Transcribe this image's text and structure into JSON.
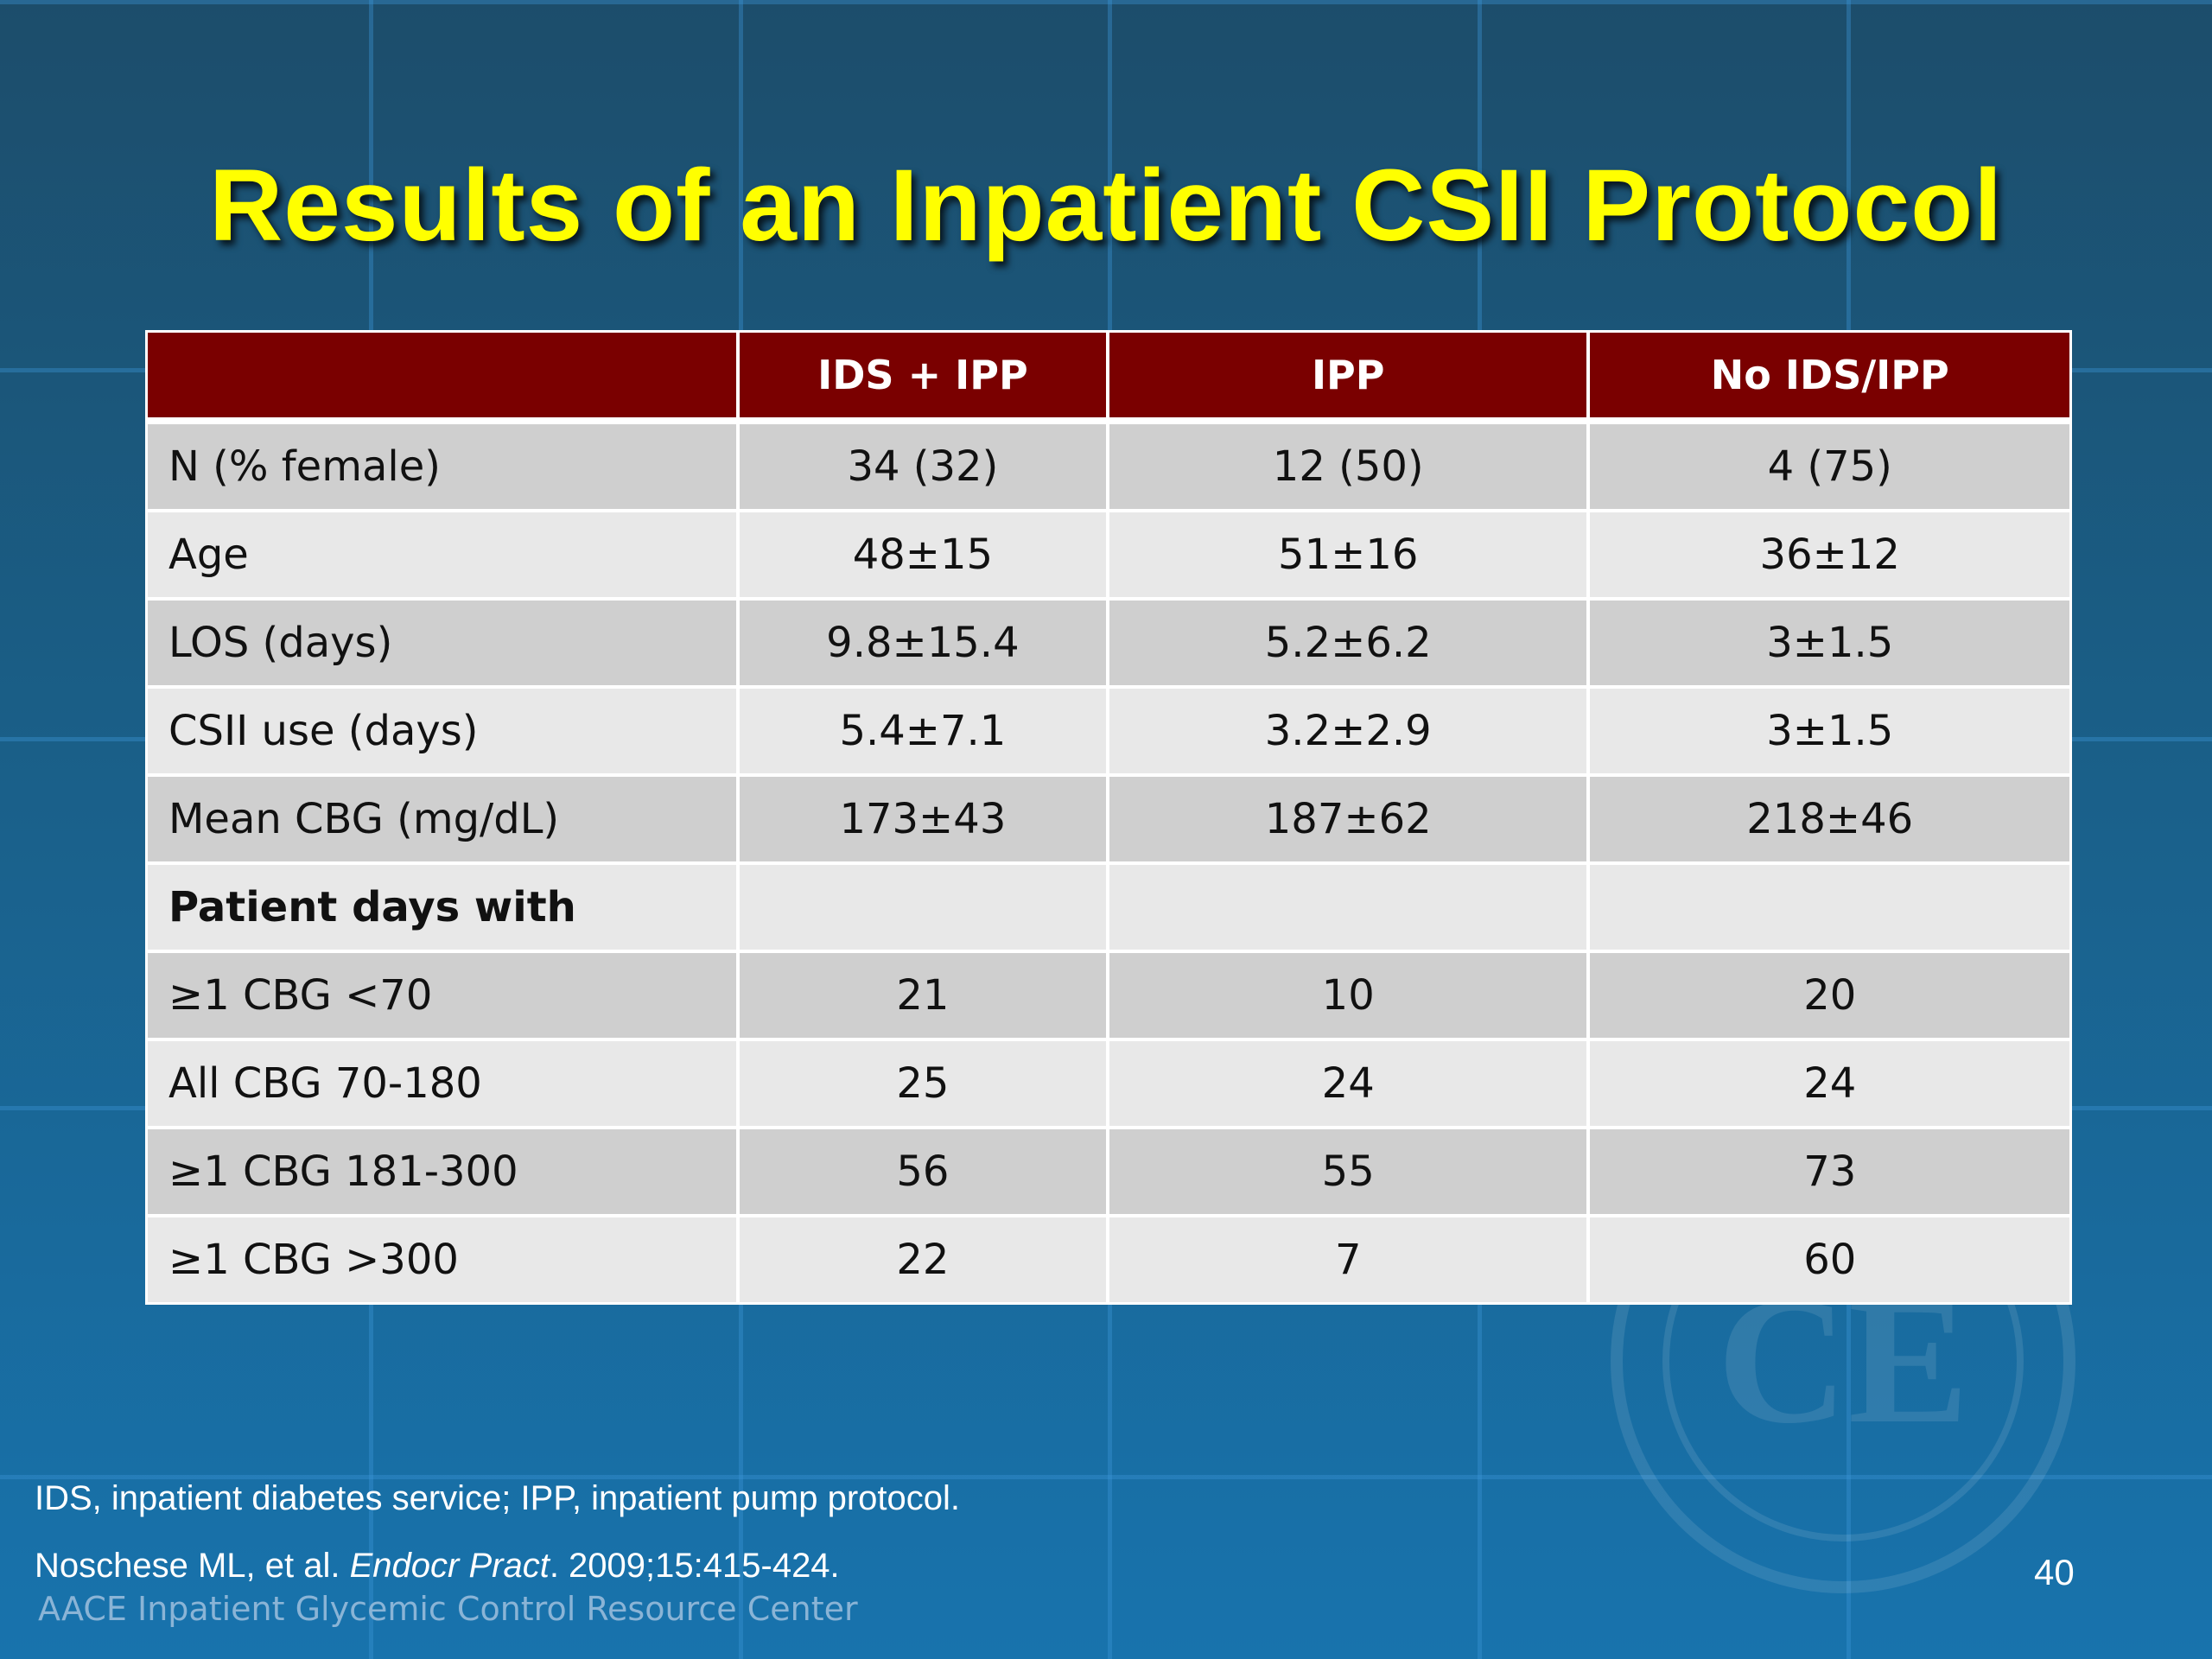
{
  "slide": {
    "title": "Results of an Inpatient CSII Protocol",
    "page_number": "40"
  },
  "table": {
    "headers": [
      "",
      "IDS + IPP",
      "IPP",
      "No IDS/IPP"
    ],
    "rows": [
      {
        "label": "N (% female)",
        "values": [
          "34 (32)",
          "12 (50)",
          "4 (75)"
        ]
      },
      {
        "label": "Age",
        "values": [
          "48±15",
          "51±16",
          "36±12"
        ]
      },
      {
        "label": "LOS (days)",
        "values": [
          "9.8±15.4",
          "5.2±6.2",
          "3±1.5"
        ]
      },
      {
        "label": "CSII use (days)",
        "values": [
          "5.4±7.1",
          "3.2±2.9",
          "3±1.5"
        ]
      },
      {
        "label": "Mean CBG (mg/dL)",
        "values": [
          "173±43",
          "187±62",
          "218±46"
        ]
      },
      {
        "label": "Patient days with",
        "values": [
          "",
          "",
          ""
        ]
      },
      {
        "label": "≥1 CBG <70",
        "values": [
          "21",
          "10",
          "20"
        ]
      },
      {
        "label": "All CBG 70-180",
        "values": [
          "25",
          "24",
          "24"
        ]
      },
      {
        "label": "≥1 CBG 181-300",
        "values": [
          "56",
          "55",
          "73"
        ]
      },
      {
        "label": "≥1 CBG >300",
        "values": [
          "22",
          "7",
          "60"
        ]
      }
    ]
  },
  "footnotes": {
    "abbreviations": "IDS, inpatient diabetes service; IPP, inpatient pump protocol.",
    "citation_authors": "Noschese ML, et al. ",
    "citation_journal": "Endocr Pract",
    "citation_details": ". 2009;15:415-424."
  },
  "branding": {
    "center_name": "AACE Inpatient Glycemic Control Resource Center",
    "seal_text": "CE"
  },
  "colors": {
    "title": "#ffff00",
    "header_fill": "#7a0000",
    "row_dark": "#cfcfcf",
    "row_light": "#e8e8e8"
  }
}
